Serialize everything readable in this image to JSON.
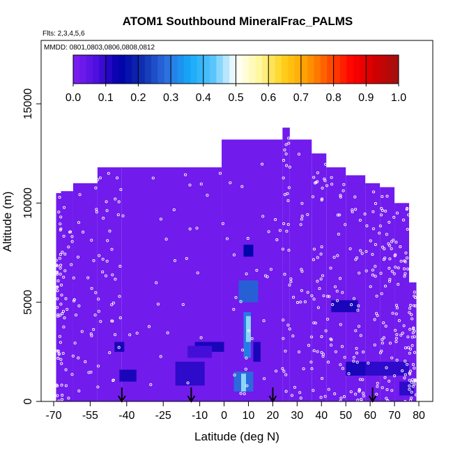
{
  "chart_data": {
    "type": "heatmap",
    "title": "ATOM1 Southbound MineralFrac_PALMS",
    "flights_note": "Flts: 2,3,4,5,6",
    "dates_note": "MMDD: 0801,0803,0806,0808,0812",
    "xlabel": "Latitude (deg N)",
    "ylabel": "Altitude (m)",
    "xlim": [
      -70,
      80
    ],
    "ylim": [
      0,
      17500
    ],
    "x_ticks": [
      -70,
      -55,
      -40,
      -25,
      -10,
      0,
      10,
      20,
      30,
      40,
      50,
      60,
      70,
      80
    ],
    "y_ticks": [
      0,
      5000,
      10000,
      15000
    ],
    "colorbar": {
      "range": [
        0.0,
        1.0
      ],
      "ticks": [
        "0.0",
        "0.1",
        "0.2",
        "0.3",
        "0.4",
        "0.5",
        "0.6",
        "0.7",
        "0.8",
        "0.9",
        "1.0"
      ],
      "stops": [
        "#7f1ff2",
        "#4d10e0",
        "#0000a8",
        "#1030b0",
        "#2d6ee0",
        "#14a8f8",
        "#57c4fb",
        "#ffffff",
        "#fff8a0",
        "#ffd21c",
        "#ffa000",
        "#ff5000",
        "#ff0000",
        "#d00000",
        "#a01010"
      ]
    },
    "background_value": 0.02,
    "coverage": [
      {
        "lat_range": [
          -69,
          -67
        ],
        "alt_range": [
          0,
          10500
        ]
      },
      {
        "lat_range": [
          -67,
          -62
        ],
        "alt_range": [
          0,
          10600
        ]
      },
      {
        "lat_range": [
          -62,
          -52
        ],
        "alt_range": [
          0,
          11000
        ]
      },
      {
        "lat_range": [
          -52,
          -42
        ],
        "alt_range": [
          0,
          11800
        ]
      },
      {
        "lat_range": [
          -42,
          -1
        ],
        "alt_range": [
          0,
          11800
        ]
      },
      {
        "lat_range": [
          -1,
          24
        ],
        "alt_range": [
          0,
          13200
        ]
      },
      {
        "lat_range": [
          24,
          27
        ],
        "alt_range": [
          0,
          13800
        ]
      },
      {
        "lat_range": [
          27,
          36
        ],
        "alt_range": [
          0,
          13200
        ]
      },
      {
        "lat_range": [
          36,
          42
        ],
        "alt_range": [
          0,
          12500
        ]
      },
      {
        "lat_range": [
          42,
          50
        ],
        "alt_range": [
          0,
          11800
        ]
      },
      {
        "lat_range": [
          50,
          58
        ],
        "alt_range": [
          0,
          11400
        ]
      },
      {
        "lat_range": [
          58,
          64
        ],
        "alt_range": [
          0,
          11000
        ]
      },
      {
        "lat_range": [
          64,
          70
        ],
        "alt_range": [
          0,
          10800
        ]
      },
      {
        "lat_range": [
          70,
          76
        ],
        "alt_range": [
          0,
          10000
        ]
      },
      {
        "lat_range": [
          76,
          79
        ],
        "alt_range": [
          0,
          6000
        ]
      }
    ],
    "features": [
      {
        "lat_range": [
          -43,
          -36
        ],
        "alt_range": [
          1000,
          1600
        ],
        "value": 0.12
      },
      {
        "lat_range": [
          -45,
          -41
        ],
        "alt_range": [
          2500,
          3000
        ],
        "value": 0.12
      },
      {
        "lat_range": [
          -20,
          -8
        ],
        "alt_range": [
          800,
          2000
        ],
        "value": 0.1
      },
      {
        "lat_range": [
          -12,
          0
        ],
        "alt_range": [
          2500,
          3000
        ],
        "value": 0.12
      },
      {
        "lat_range": [
          4,
          12
        ],
        "alt_range": [
          500,
          1500
        ],
        "value": 0.28
      },
      {
        "lat_range": [
          7,
          9
        ],
        "alt_range": [
          500,
          1400
        ],
        "value": 0.45
      },
      {
        "lat_range": [
          8,
          11
        ],
        "alt_range": [
          2200,
          4500
        ],
        "value": 0.3
      },
      {
        "lat_range": [
          9,
          11
        ],
        "alt_range": [
          3000,
          4300
        ],
        "value": 0.45
      },
      {
        "lat_range": [
          6,
          14
        ],
        "alt_range": [
          5000,
          6100
        ],
        "value": 0.27
      },
      {
        "lat_range": [
          8,
          12
        ],
        "alt_range": [
          7300,
          7900
        ],
        "value": 0.15
      },
      {
        "lat_range": [
          12,
          15
        ],
        "alt_range": [
          2000,
          3000
        ],
        "value": 0.12
      },
      {
        "lat_range": [
          44,
          55
        ],
        "alt_range": [
          4500,
          5100
        ],
        "value": 0.12
      },
      {
        "lat_range": [
          50,
          60
        ],
        "alt_range": [
          1300,
          2000
        ],
        "value": 0.12
      },
      {
        "lat_range": [
          58,
          76
        ],
        "alt_range": [
          1300,
          2000
        ],
        "value": 0.1
      },
      {
        "lat_range": [
          72,
          78
        ],
        "alt_range": [
          300,
          1000
        ],
        "value": 0.1
      },
      {
        "lat_range": [
          -15,
          -5
        ],
        "alt_range": [
          2200,
          2800
        ],
        "value": 0.08
      }
    ],
    "arrows_lat": [
      -42,
      -13.5,
      20,
      61
    ],
    "flight_track_points": 520
  }
}
